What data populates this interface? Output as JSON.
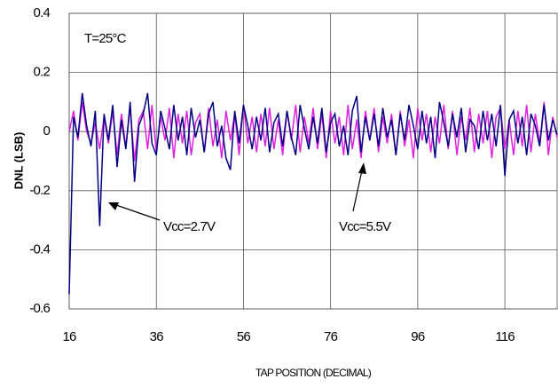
{
  "chart_data": {
    "type": "line",
    "title": "T=25°C",
    "x_label": "TAP POSITION (DECIMAL)",
    "y_label": "DNL (LSB)",
    "annotations": [
      "Vcc=2.7V",
      "Vcc=5.5V"
    ],
    "xlim": [
      16,
      128
    ],
    "xticks": [
      16,
      36,
      56,
      76,
      96,
      116
    ],
    "ylim": [
      -0.6,
      0.4
    ],
    "yticks": [
      -0.6,
      -0.4,
      -0.2,
      0,
      0.2,
      0.4
    ],
    "grid": true,
    "x": [
      16,
      17,
      18,
      19,
      20,
      21,
      22,
      23,
      24,
      25,
      26,
      27,
      28,
      29,
      30,
      31,
      32,
      33,
      34,
      35,
      36,
      37,
      38,
      39,
      40,
      41,
      42,
      43,
      44,
      45,
      46,
      47,
      48,
      49,
      50,
      51,
      52,
      53,
      54,
      55,
      56,
      57,
      58,
      59,
      60,
      61,
      62,
      63,
      64,
      65,
      66,
      67,
      68,
      69,
      70,
      71,
      72,
      73,
      74,
      75,
      76,
      77,
      78,
      79,
      80,
      81,
      82,
      83,
      84,
      85,
      86,
      87,
      88,
      89,
      90,
      91,
      92,
      93,
      94,
      95,
      96,
      97,
      98,
      99,
      100,
      101,
      102,
      103,
      104,
      105,
      106,
      107,
      108,
      109,
      110,
      111,
      112,
      113,
      114,
      115,
      116,
      117,
      118,
      119,
      120,
      121,
      122,
      123,
      124,
      125,
      126,
      127,
      128
    ],
    "series": [
      {
        "name": "Vcc=2.7V",
        "color": "#000080",
        "values": [
          -0.55,
          0.05,
          -0.02,
          0.13,
          0.02,
          -0.05,
          0.07,
          -0.32,
          0.06,
          -0.03,
          0.09,
          -0.12,
          0.04,
          -0.06,
          0.1,
          -0.17,
          0.02,
          0.06,
          0.13,
          -0.04,
          -0.08,
          0.07,
          0.01,
          -0.06,
          0.09,
          -0.03,
          0.05,
          -0.08,
          0.08,
          -0.02,
          0.04,
          -0.07,
          0.06,
          0.1,
          -0.05,
          0.02,
          -0.09,
          -0.13,
          0.07,
          -0.04,
          0.09,
          0.02,
          -0.06,
          0.05,
          -0.03,
          0.08,
          -0.07,
          0.03,
          0.06,
          -0.05,
          0.07,
          -0.02,
          -0.08,
          0.09,
          0.01,
          -0.06,
          0.05,
          -0.04,
          0.08,
          -0.07,
          0.03,
          0.06,
          -0.05,
          0.02,
          -0.08,
          0.07,
          0.12,
          -0.07,
          0.05,
          -0.03,
          0.06,
          -0.05,
          0.08,
          -0.02,
          0.04,
          -0.08,
          0.06,
          -0.03,
          0.09,
          0.02,
          -0.06,
          0.07,
          -0.04,
          0.05,
          -0.09,
          0.1,
          0.03,
          -0.05,
          0.06,
          -0.02,
          0.08,
          -0.07,
          0.04,
          0.02,
          -0.06,
          0.07,
          -0.03,
          0.06,
          -0.05,
          0.09,
          -0.15,
          0.04,
          0.07,
          -0.04,
          0.05,
          -0.08,
          0.06,
          0.02,
          -0.05,
          0.09,
          -0.03,
          0.04,
          -0.01
        ]
      },
      {
        "name": "Vcc=5.5V",
        "color": "#e020e0",
        "values": [
          0.0,
          0.07,
          -0.03,
          0.1,
          0.0,
          -0.04,
          0.03,
          -0.06,
          0.05,
          -0.04,
          0.07,
          -0.08,
          0.06,
          -0.05,
          0.08,
          -0.1,
          0.04,
          0.07,
          -0.06,
          0.09,
          -0.07,
          0.05,
          -0.03,
          0.08,
          -0.09,
          0.06,
          -0.04,
          0.07,
          -0.08,
          0.03,
          0.06,
          -0.07,
          0.08,
          -0.05,
          0.04,
          -0.09,
          0.07,
          -0.03,
          0.06,
          -0.08,
          0.09,
          -0.04,
          0.05,
          -0.07,
          0.06,
          -0.05,
          0.08,
          -0.06,
          0.04,
          -0.08,
          0.07,
          -0.03,
          0.09,
          -0.07,
          0.05,
          -0.04,
          0.08,
          -0.06,
          0.06,
          -0.09,
          0.07,
          -0.04,
          0.05,
          -0.08,
          0.09,
          -0.06,
          0.04,
          -0.09,
          0.07,
          -0.03,
          0.08,
          -0.07,
          0.05,
          -0.04,
          0.06,
          -0.08,
          0.07,
          -0.05,
          0.04,
          -0.09,
          0.08,
          -0.03,
          0.06,
          -0.07,
          0.05,
          -0.04,
          0.09,
          -0.06,
          0.07,
          -0.08,
          0.05,
          -0.03,
          0.08,
          -0.07,
          0.06,
          -0.04,
          0.07,
          -0.09,
          0.05,
          0.08,
          -0.06,
          0.04,
          -0.08,
          0.07,
          -0.05,
          0.09,
          -0.07,
          0.06,
          -0.04,
          0.1,
          -0.08,
          0.05,
          -0.02
        ]
      }
    ]
  }
}
